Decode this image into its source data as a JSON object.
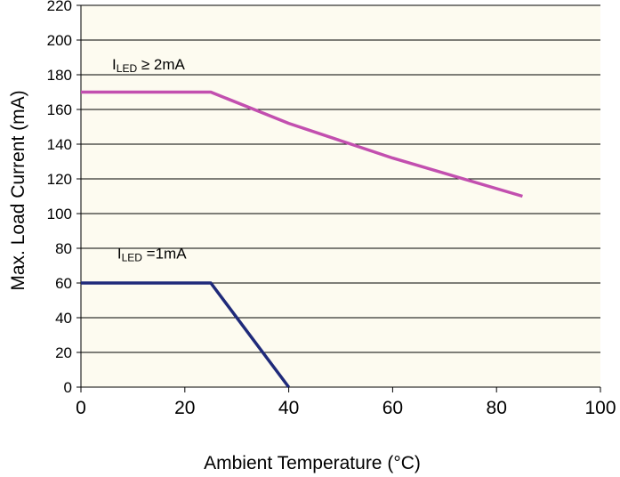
{
  "chart_data": {
    "type": "line",
    "xlabel": "Ambient Temperature (°C)",
    "ylabel": "Max. Load Current  (mA)",
    "xlim": [
      0,
      100
    ],
    "ylim": [
      0,
      220
    ],
    "x_ticks": [
      0,
      20,
      40,
      60,
      80,
      100
    ],
    "y_ticks": [
      0,
      20,
      40,
      60,
      80,
      100,
      120,
      140,
      160,
      180,
      200,
      220
    ],
    "x_tick_labels": [
      "0",
      "20",
      "40",
      "60",
      "80",
      "100"
    ],
    "y_tick_labels": [
      "0",
      "20",
      "40",
      "60",
      "80",
      "100",
      "120",
      "140",
      "160",
      "180",
      "200",
      "220"
    ],
    "grid": "horizontal",
    "plot_background": "#fdfbf0",
    "series": [
      {
        "color": "#c24faf",
        "points": [
          [
            0,
            170
          ],
          [
            25,
            170
          ],
          [
            40,
            152
          ],
          [
            60,
            132
          ],
          [
            85,
            110
          ]
        ]
      },
      {
        "color": "#1f2a7a",
        "points": [
          [
            0,
            60
          ],
          [
            25,
            60
          ],
          [
            40,
            0
          ]
        ]
      }
    ],
    "annotations": [
      {
        "main": "I",
        "sub": "LED",
        "rest": " ≥ 2mA",
        "x": 6,
        "y": 183
      },
      {
        "main": "I",
        "sub": "LED",
        "rest": " =1mA",
        "x": 7,
        "y": 74
      }
    ]
  }
}
